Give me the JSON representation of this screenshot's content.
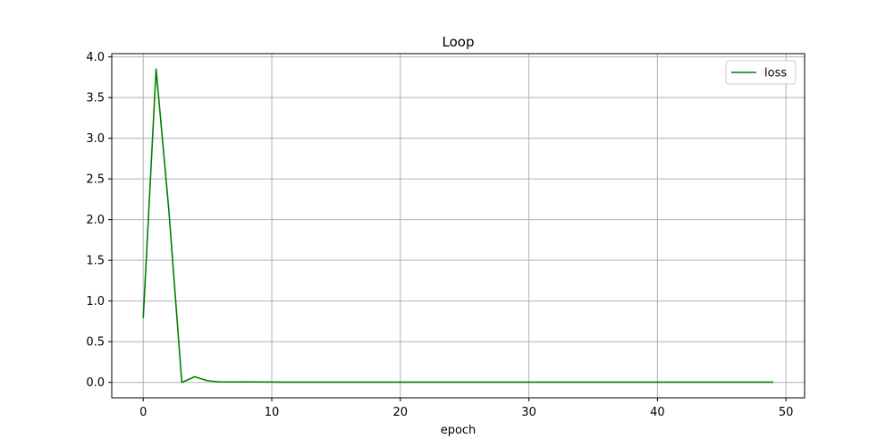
{
  "chart_data": {
    "type": "line",
    "title": "Loop",
    "xlabel": "epoch",
    "ylabel": "",
    "xlim": [
      -2.45,
      51.45
    ],
    "ylim": [
      -0.19,
      4.04
    ],
    "xticks": [
      0,
      10,
      20,
      30,
      40,
      50
    ],
    "xtick_labels": [
      "0",
      "10",
      "20",
      "30",
      "40",
      "50"
    ],
    "yticks": [
      0.0,
      0.5,
      1.0,
      1.5,
      2.0,
      2.5,
      3.0,
      3.5,
      4.0
    ],
    "ytick_labels": [
      "0.0",
      "0.5",
      "1.0",
      "1.5",
      "2.0",
      "2.5",
      "3.0",
      "3.5",
      "4.0"
    ],
    "grid": true,
    "legend_position": "top-right",
    "series": [
      {
        "name": "loss",
        "color": "#008000",
        "x": [
          0,
          1,
          2,
          3,
          4,
          5,
          6,
          7,
          8,
          9,
          10,
          11,
          12,
          13,
          14,
          15,
          16,
          17,
          18,
          19,
          20,
          21,
          22,
          23,
          24,
          25,
          26,
          27,
          28,
          29,
          30,
          31,
          32,
          33,
          34,
          35,
          36,
          37,
          38,
          39,
          40,
          41,
          42,
          43,
          44,
          45,
          46,
          47,
          48,
          49
        ],
        "y": [
          0.79,
          3.85,
          2.1,
          0.0,
          0.07,
          0.02,
          0.005,
          0.005,
          0.006,
          0.005,
          0.004,
          0.003,
          0.003,
          0.003,
          0.003,
          0.003,
          0.003,
          0.003,
          0.003,
          0.003,
          0.003,
          0.003,
          0.003,
          0.003,
          0.003,
          0.003,
          0.003,
          0.003,
          0.003,
          0.003,
          0.003,
          0.003,
          0.003,
          0.003,
          0.003,
          0.003,
          0.003,
          0.003,
          0.003,
          0.003,
          0.003,
          0.003,
          0.003,
          0.003,
          0.003,
          0.003,
          0.003,
          0.003,
          0.003,
          0.003
        ]
      }
    ]
  }
}
